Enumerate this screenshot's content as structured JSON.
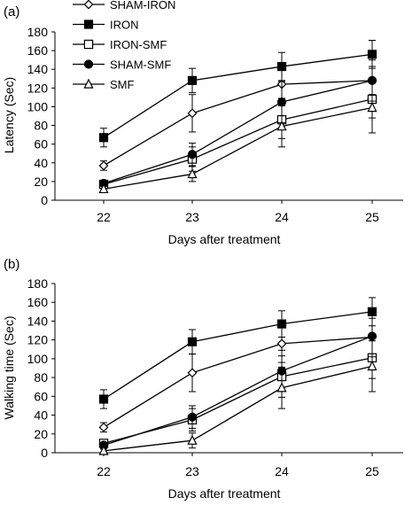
{
  "chart_data": [
    {
      "type": "line",
      "panel_label": "(a)",
      "xlabel": "Days after treatment",
      "ylabel": "Latency (Sec)",
      "categories": [
        "22",
        "23",
        "24",
        "25"
      ],
      "ylim": [
        0,
        180
      ],
      "yticks": [
        "0",
        "20",
        "40",
        "60",
        "80",
        "100",
        "120",
        "140",
        "160",
        "180"
      ],
      "grid": false,
      "legend_position": "top-left",
      "series": [
        {
          "name": "SHAM-IRON",
          "marker": "diamond-open",
          "values": [
            37,
            93,
            124,
            128
          ],
          "errors": [
            5,
            20,
            15,
            15
          ]
        },
        {
          "name": "IRON",
          "marker": "square-filled",
          "values": [
            67,
            128,
            143,
            156
          ],
          "errors": [
            10,
            13,
            15,
            15
          ]
        },
        {
          "name": "IRON-SMF",
          "marker": "square-open",
          "values": [
            17,
            44,
            86,
            108
          ],
          "errors": [
            3,
            13,
            20,
            20
          ]
        },
        {
          "name": "SHAM-SMF",
          "marker": "circle-filled",
          "values": [
            18,
            49,
            105,
            128
          ],
          "errors": [
            3,
            12,
            22,
            22
          ]
        },
        {
          "name": "SMF",
          "marker": "triangle-open",
          "values": [
            12,
            28,
            79,
            99
          ],
          "errors": [
            3,
            8,
            22,
            27
          ]
        }
      ]
    },
    {
      "type": "line",
      "panel_label": "(b)",
      "xlabel": "Days after treatment",
      "ylabel": "Walking time (Sec)",
      "categories": [
        "22",
        "23",
        "24",
        "25"
      ],
      "ylim": [
        0,
        180
      ],
      "yticks": [
        "0",
        "20",
        "40",
        "60",
        "80",
        "100",
        "120",
        "140",
        "160",
        "180"
      ],
      "grid": false,
      "series": [
        {
          "name": "SHAM-IRON",
          "marker": "diamond-open",
          "values": [
            27,
            85,
            116,
            123
          ],
          "errors": [
            5,
            20,
            20,
            20
          ]
        },
        {
          "name": "IRON",
          "marker": "square-filled",
          "values": [
            57,
            118,
            137,
            150
          ],
          "errors": [
            10,
            13,
            14,
            15
          ]
        },
        {
          "name": "IRON-SMF",
          "marker": "square-open",
          "values": [
            10,
            35,
            81,
            101
          ],
          "errors": [
            3,
            12,
            22,
            22
          ]
        },
        {
          "name": "SHAM-SMF",
          "marker": "circle-filled",
          "values": [
            8,
            38,
            87,
            124
          ],
          "errors": [
            3,
            12,
            22,
            22
          ]
        },
        {
          "name": "SMF",
          "marker": "triangle-open",
          "values": [
            2,
            13,
            69,
            92
          ],
          "errors": [
            2,
            8,
            22,
            27
          ]
        }
      ]
    }
  ]
}
